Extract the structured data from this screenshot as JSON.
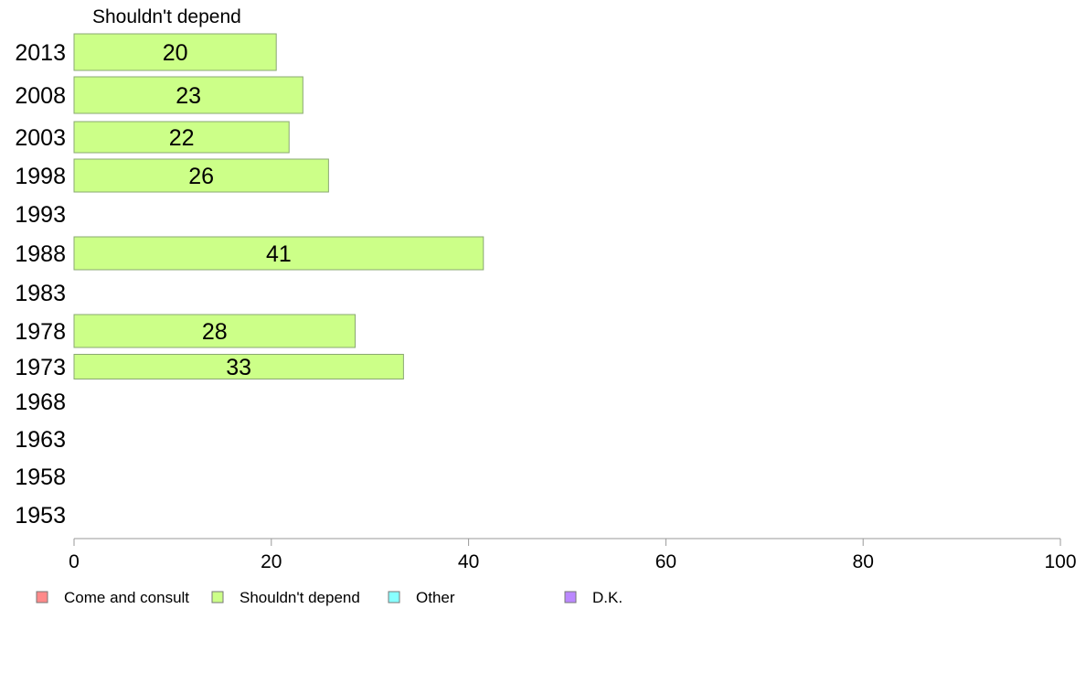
{
  "chart_data": {
    "type": "bar",
    "orientation": "horizontal",
    "title": "Shouldn't depend",
    "categories": [
      "2013",
      "2008",
      "2003",
      "1998",
      "1993",
      "1988",
      "1983",
      "1978",
      "1973",
      "1968",
      "1963",
      "1958",
      "1953"
    ],
    "series": [
      {
        "name": "Shouldn't depend",
        "values": [
          20.5,
          23.2,
          21.8,
          25.8,
          null,
          41.5,
          null,
          28.5,
          33.4,
          null,
          null,
          null,
          null
        ],
        "labels": [
          "20",
          "23",
          "22",
          "26",
          "",
          "41",
          "",
          "28",
          "33",
          "",
          "",
          "",
          ""
        ],
        "color": "#ccff88"
      }
    ],
    "xlim": [
      0,
      100
    ],
    "xticks": [
      "0",
      "20",
      "40",
      "60",
      "80",
      "100"
    ],
    "legend": {
      "placement": "bottom",
      "entries": [
        {
          "label": "Come and consult",
          "color": "#ff8a8a"
        },
        {
          "label": "Shouldn't depend",
          "color": "#ccff88"
        },
        {
          "label": "Other",
          "color": "#88ffff"
        },
        {
          "label": "D.K.",
          "color": "#bb88ff"
        }
      ]
    },
    "grid": false
  }
}
